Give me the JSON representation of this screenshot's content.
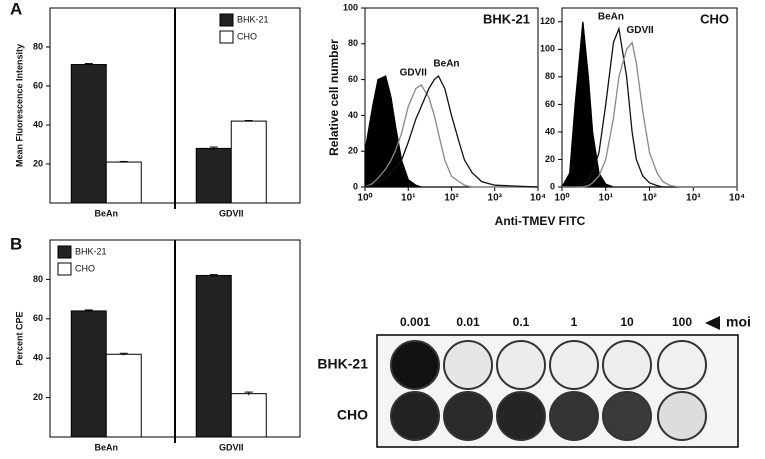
{
  "panels": [
    "A",
    "B"
  ],
  "chart_data": [
    {
      "type": "bar",
      "ylabel": "Mean Fluorescence Intensity",
      "categories": [
        "BeAn",
        "GDVII"
      ],
      "series": [
        {
          "name": "BHK-21",
          "color": "#222222",
          "values": [
            71,
            28
          ],
          "errors": [
            0.5,
            0.7
          ]
        },
        {
          "name": "CHO",
          "color": "#ffffff",
          "values": [
            21,
            42
          ],
          "errors": [
            0.3,
            0.3
          ]
        }
      ],
      "ylim": [
        0,
        100
      ],
      "yticks": [
        20,
        40,
        60,
        80
      ],
      "legend": "upper right"
    },
    {
      "type": "histogram",
      "title": "BHK-21",
      "ylabel": "Relative cell number",
      "xlabel": "Anti-TMEV FITC",
      "xscale": "log",
      "x": [
        1,
        1.5,
        2,
        3,
        4,
        5,
        7,
        10,
        15,
        20,
        30,
        40,
        50,
        70,
        100,
        150,
        200,
        300,
        500,
        1000,
        10000
      ],
      "series": [
        {
          "color": "#000000",
          "fill": true,
          "values": [
            20,
            45,
            60,
            62,
            50,
            35,
            15,
            4,
            1,
            0,
            0,
            0,
            0,
            0,
            0,
            0,
            0,
            0,
            0,
            0,
            0
          ]
        },
        {
          "name": "GDVII",
          "color": "#888888",
          "values": [
            0,
            2,
            5,
            10,
            15,
            20,
            30,
            45,
            55,
            57,
            50,
            40,
            30,
            15,
            6,
            3,
            1,
            0,
            0,
            0,
            0
          ]
        },
        {
          "name": "BeAn",
          "color": "#111111",
          "values": [
            0,
            1,
            3,
            5,
            8,
            10,
            15,
            25,
            38,
            45,
            55,
            60,
            62,
            55,
            40,
            25,
            15,
            8,
            3,
            1,
            0
          ]
        }
      ],
      "xlim": [
        1,
        10000
      ],
      "xticks": [
        {
          "value": 1,
          "label": "10⁰"
        },
        {
          "value": 10,
          "label": "10¹"
        },
        {
          "value": 100,
          "label": "10²"
        },
        {
          "value": 1000,
          "label": "10³"
        },
        {
          "value": 10000,
          "label": "10⁴"
        }
      ],
      "ylim": [
        0,
        100
      ],
      "yticks": [
        0,
        20,
        40,
        60,
        80,
        100
      ]
    },
    {
      "type": "histogram",
      "title": "CHO",
      "xscale": "log",
      "x": [
        1,
        1.5,
        2,
        3,
        4,
        5,
        7,
        10,
        15,
        20,
        30,
        40,
        50,
        70,
        100,
        150,
        200,
        300,
        500,
        1000,
        10000
      ],
      "series": [
        {
          "color": "#000000",
          "fill": true,
          "values": [
            0,
            10,
            60,
            120,
            80,
            40,
            10,
            2,
            0,
            0,
            0,
            0,
            0,
            0,
            0,
            0,
            0,
            0,
            0,
            0,
            0
          ]
        },
        {
          "name": "BeAn",
          "color": "#111111",
          "values": [
            0,
            0,
            0,
            2,
            5,
            10,
            25,
            60,
            105,
            115,
            80,
            40,
            20,
            8,
            3,
            1,
            0,
            0,
            0,
            0,
            0
          ]
        },
        {
          "name": "GDVII",
          "color": "#888888",
          "values": [
            0,
            0,
            0,
            0,
            1,
            3,
            8,
            20,
            50,
            80,
            100,
            105,
            90,
            55,
            25,
            10,
            4,
            1,
            0,
            0,
            0
          ]
        }
      ],
      "xlim": [
        1,
        10000
      ],
      "xticks": [
        {
          "value": 1,
          "label": "10⁰"
        },
        {
          "value": 10,
          "label": "10¹"
        },
        {
          "value": 100,
          "label": "10²"
        },
        {
          "value": 1000,
          "label": "10³"
        },
        {
          "value": 10000,
          "label": "10⁴"
        }
      ],
      "ylim": [
        0,
        130
      ],
      "yticks": [
        0,
        20,
        40,
        60,
        80,
        100,
        120
      ]
    },
    {
      "type": "bar",
      "ylabel": "Percent CPE",
      "categories": [
        "BeAn",
        "GDVII"
      ],
      "series": [
        {
          "name": "BHK-21",
          "color": "#222222",
          "values": [
            64,
            82
          ],
          "errors": [
            0.5,
            0.4
          ]
        },
        {
          "name": "CHO",
          "color": "#ffffff",
          "values": [
            42,
            22
          ],
          "errors": [
            0.5,
            0.8
          ]
        }
      ],
      "ylim": [
        0,
        100
      ],
      "yticks": [
        20,
        40,
        60,
        80
      ],
      "legend": "upper left"
    }
  ],
  "plate": {
    "columns": [
      "0.001",
      "0.01",
      "0.1",
      "1",
      "10",
      "100"
    ],
    "column_label": "moi",
    "rows": [
      "BHK-21",
      "CHO"
    ]
  }
}
